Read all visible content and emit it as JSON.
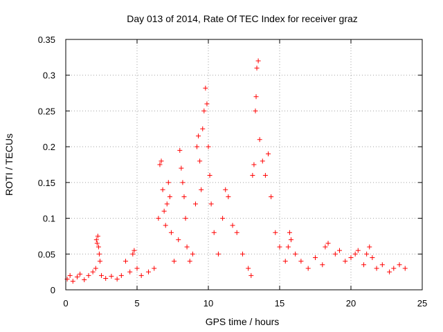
{
  "chart_data": {
    "type": "scatter",
    "title": "Day 013 of 2014, Rate Of TEC Index for receiver graz",
    "xlabel": "GPS time / hours",
    "ylabel": "ROTI / TECUs",
    "xlim": [
      0,
      25
    ],
    "ylim": [
      0,
      0.35
    ],
    "xticks": [
      0,
      5,
      10,
      15,
      20,
      25
    ],
    "yticks": [
      0,
      0.05,
      0.1,
      0.15,
      0.2,
      0.25,
      0.3,
      0.35
    ],
    "xtick_labels": [
      "0",
      "5",
      "10",
      "15",
      "20",
      "25"
    ],
    "ytick_labels": [
      "0",
      "0.05",
      "0.1",
      "0.15",
      "0.2",
      "0.25",
      "0.3",
      "0.35"
    ],
    "grid": true,
    "marker": "+",
    "color": "#ff0000",
    "series": [
      {
        "name": "",
        "x": [
          0.1,
          0.3,
          0.5,
          0.8,
          1.0,
          1.3,
          1.6,
          1.9,
          2.1,
          2.15,
          2.2,
          2.25,
          2.3,
          2.35,
          2.4,
          2.5,
          2.8,
          3.2,
          3.6,
          3.9,
          4.2,
          4.5,
          4.7,
          4.8,
          5.0,
          5.3,
          5.8,
          6.2,
          6.5,
          6.6,
          6.7,
          6.8,
          6.9,
          7.0,
          7.1,
          7.2,
          7.3,
          7.4,
          7.6,
          7.9,
          8.0,
          8.1,
          8.2,
          8.3,
          8.4,
          8.5,
          8.7,
          8.9,
          9.1,
          9.2,
          9.3,
          9.4,
          9.5,
          9.6,
          9.7,
          9.8,
          9.9,
          10.0,
          10.1,
          10.2,
          10.4,
          10.7,
          11.0,
          11.2,
          11.4,
          11.7,
          12.0,
          12.4,
          12.8,
          13.0,
          13.1,
          13.2,
          13.3,
          13.35,
          13.4,
          13.5,
          13.6,
          13.8,
          14.0,
          14.2,
          14.4,
          14.7,
          15.0,
          15.4,
          15.6,
          15.7,
          15.8,
          16.1,
          16.5,
          17.0,
          17.5,
          18.0,
          18.2,
          18.4,
          18.9,
          19.2,
          19.6,
          20.0,
          20.3,
          20.5,
          20.9,
          21.1,
          21.3,
          21.5,
          21.8,
          22.2,
          22.7,
          23.0,
          23.4,
          23.8
        ],
        "y": [
          0.015,
          0.02,
          0.012,
          0.018,
          0.022,
          0.014,
          0.02,
          0.025,
          0.03,
          0.07,
          0.065,
          0.075,
          0.06,
          0.05,
          0.04,
          0.02,
          0.016,
          0.019,
          0.015,
          0.02,
          0.04,
          0.025,
          0.05,
          0.055,
          0.03,
          0.02,
          0.025,
          0.03,
          0.1,
          0.175,
          0.18,
          0.14,
          0.11,
          0.09,
          0.12,
          0.15,
          0.13,
          0.08,
          0.04,
          0.07,
          0.195,
          0.17,
          0.15,
          0.13,
          0.1,
          0.06,
          0.04,
          0.05,
          0.12,
          0.2,
          0.215,
          0.18,
          0.14,
          0.225,
          0.25,
          0.282,
          0.26,
          0.2,
          0.16,
          0.12,
          0.08,
          0.05,
          0.1,
          0.14,
          0.13,
          0.09,
          0.08,
          0.05,
          0.03,
          0.02,
          0.16,
          0.175,
          0.25,
          0.27,
          0.31,
          0.32,
          0.21,
          0.18,
          0.16,
          0.19,
          0.13,
          0.08,
          0.06,
          0.04,
          0.06,
          0.08,
          0.07,
          0.05,
          0.04,
          0.03,
          0.045,
          0.035,
          0.06,
          0.065,
          0.05,
          0.055,
          0.04,
          0.045,
          0.05,
          0.055,
          0.035,
          0.05,
          0.06,
          0.045,
          0.03,
          0.035,
          0.025,
          0.03,
          0.035,
          0.03
        ]
      }
    ]
  }
}
